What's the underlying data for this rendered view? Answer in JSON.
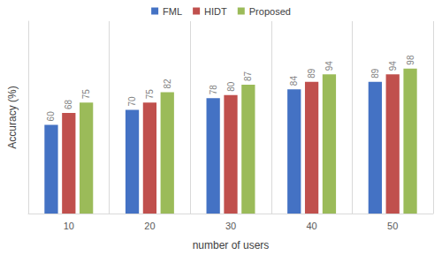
{
  "chart_data": {
    "type": "bar",
    "x_label": "number of users",
    "y_label": "Accuracy (%)",
    "categories": [
      "10",
      "20",
      "30",
      "40",
      "50"
    ],
    "series": [
      {
        "name": "FML",
        "color": "#4472c4",
        "values": [
          60,
          70,
          78,
          84,
          89
        ]
      },
      {
        "name": "HIDT",
        "color": "#c0504d",
        "values": [
          68,
          75,
          80,
          89,
          94
        ]
      },
      {
        "name": "Proposed",
        "color": "#9bbb59",
        "values": [
          75,
          82,
          87,
          94,
          98
        ]
      }
    ],
    "ylim": [
      0,
      130
    ],
    "grid": true,
    "legend": "top",
    "data_labels": true,
    "tick_labels": "x"
  }
}
